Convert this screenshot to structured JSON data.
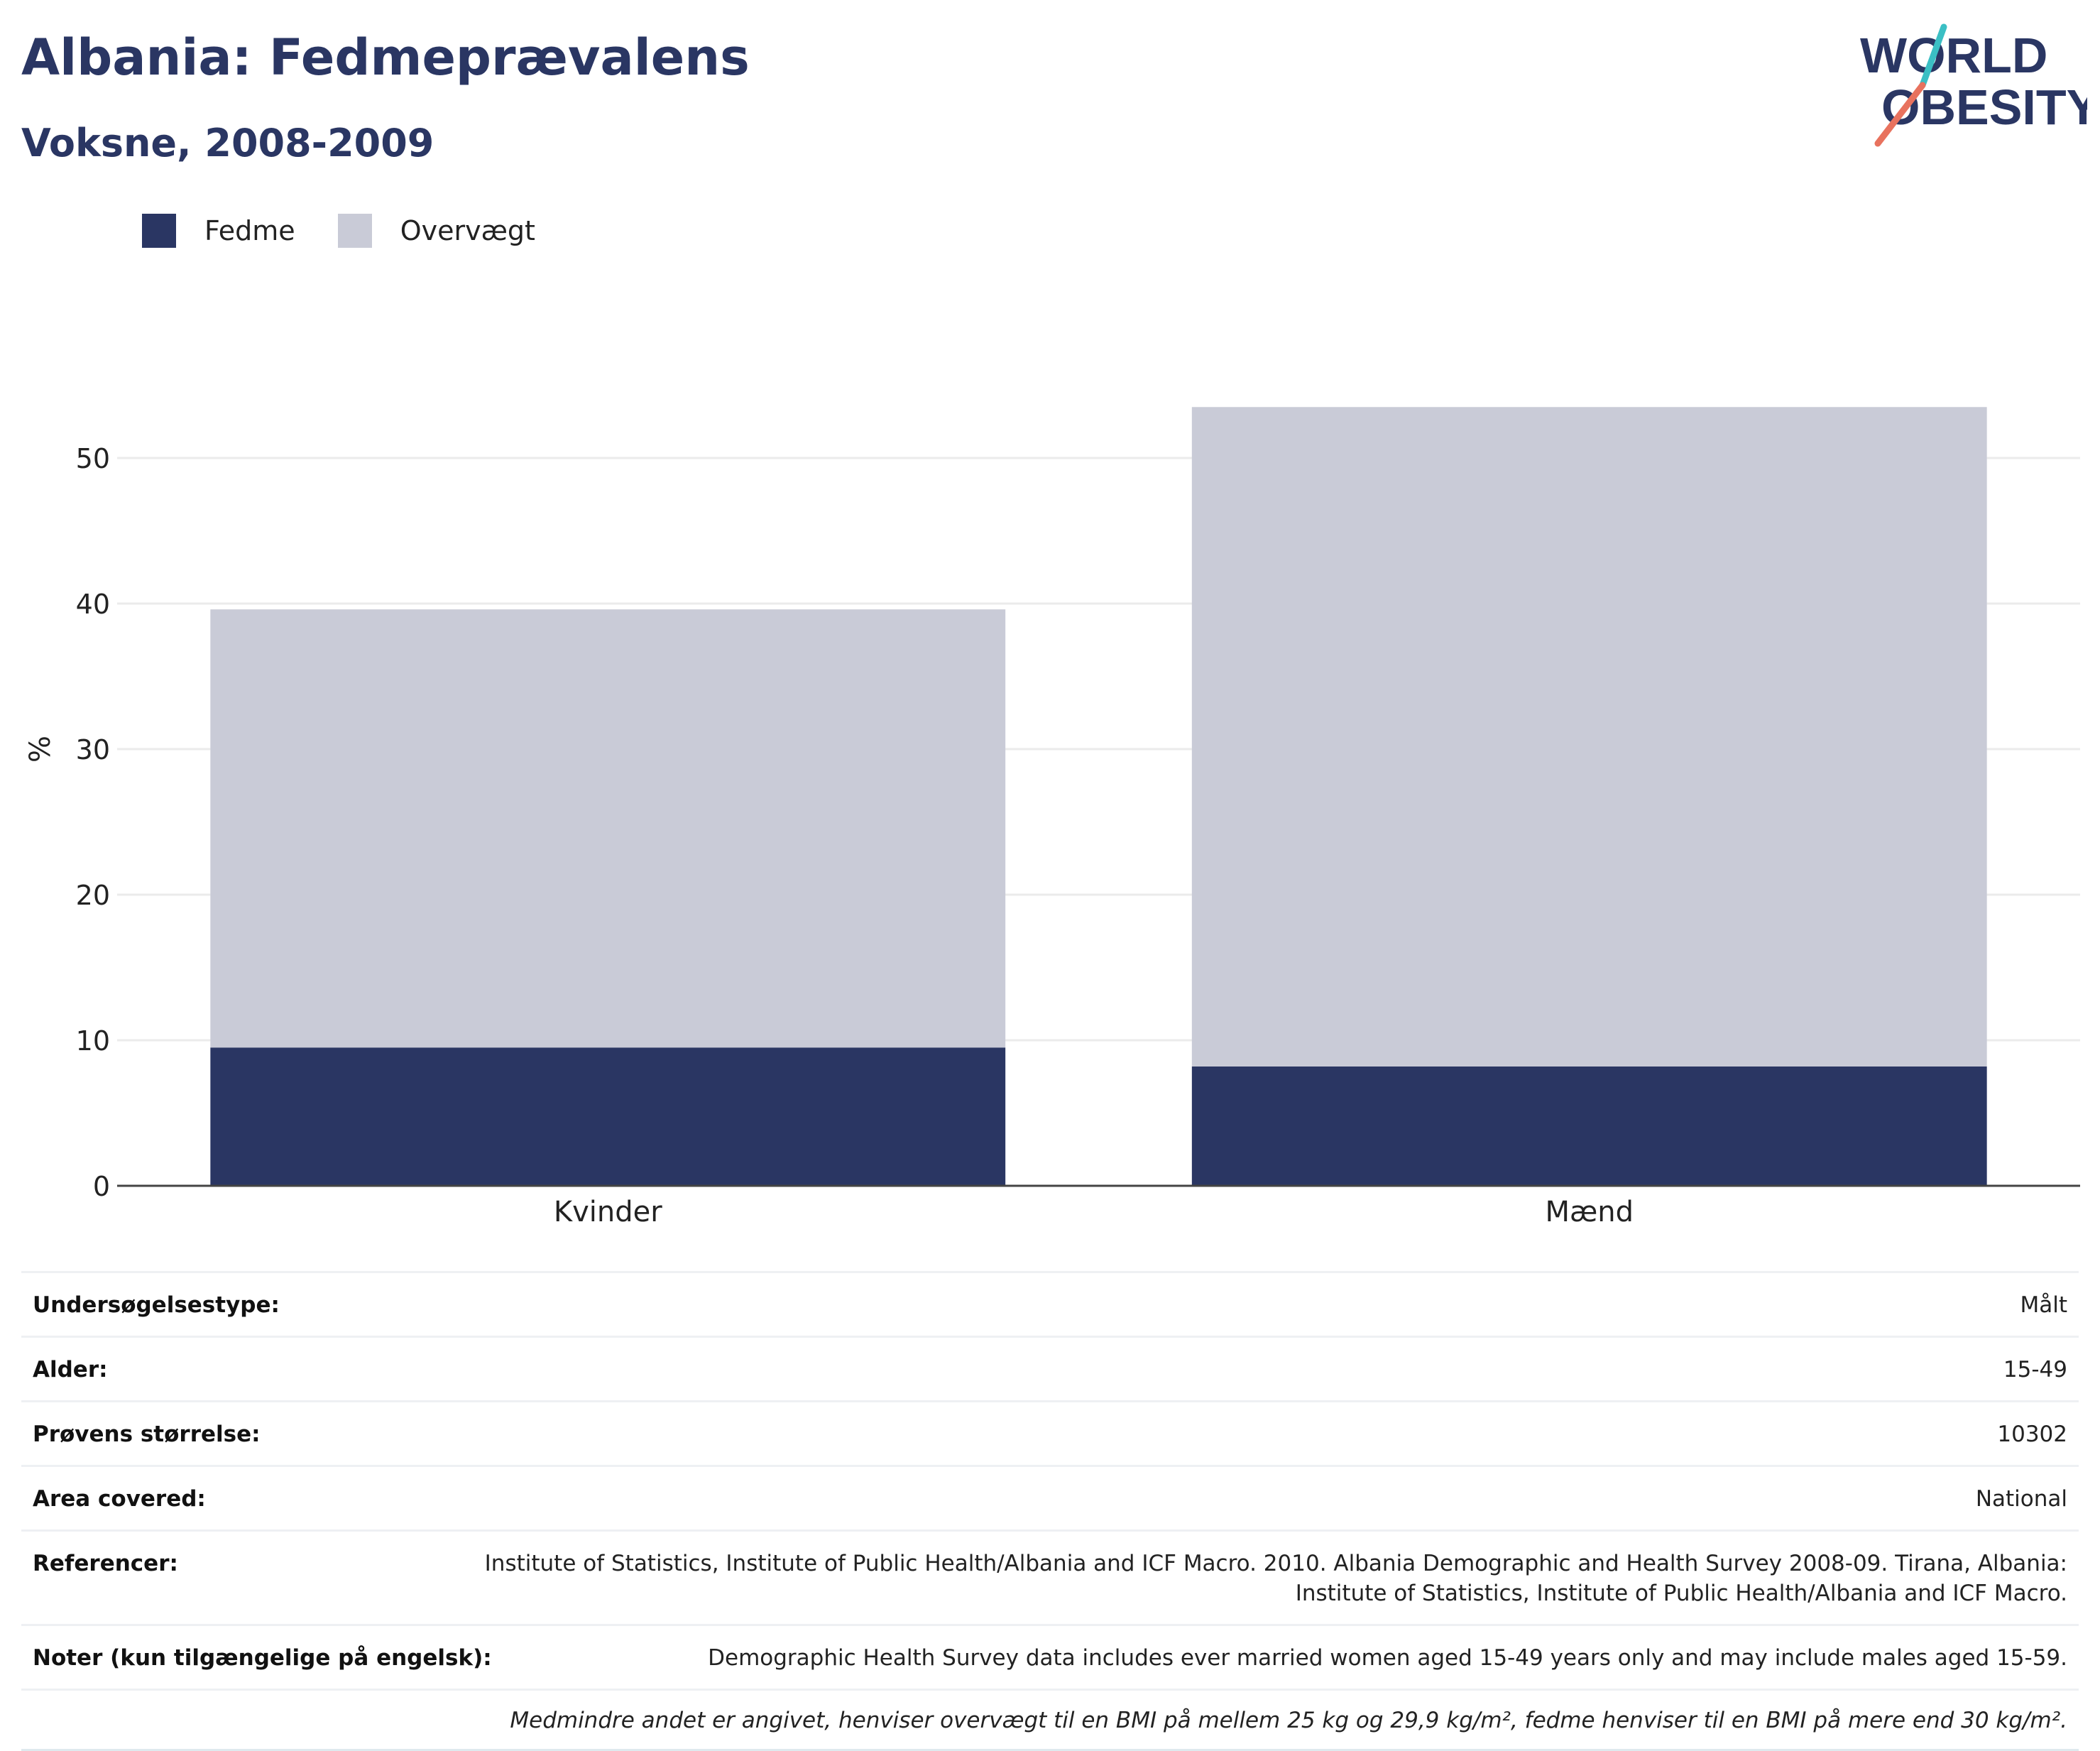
{
  "header": {
    "title": "Albania: Fedmeprævalens",
    "subtitle": "Voksne, 2008-2009",
    "logo_text": [
      "WORLD",
      "OBESITY"
    ]
  },
  "legend": [
    {
      "label": "Fedme",
      "color": "#2a3663"
    },
    {
      "label": "Overvægt",
      "color": "#c9cbd7"
    }
  ],
  "chart_data": {
    "type": "bar",
    "stacked": true,
    "categories": [
      "Kvinder",
      "Mænd"
    ],
    "series": [
      {
        "name": "Fedme",
        "values": [
          9.5,
          8.2
        ],
        "color": "#2a3663"
      },
      {
        "name": "Overvægt",
        "values": [
          30.1,
          45.3
        ],
        "color": "#c9cbd7"
      }
    ],
    "xlabel": "",
    "ylabel": "%",
    "ylim": [
      0,
      60
    ],
    "yticks": [
      0,
      10,
      20,
      30,
      40,
      50
    ],
    "grid": true,
    "legend_position": "top-left"
  },
  "info": {
    "rows": [
      {
        "label": "Undersøgelsestype:",
        "value": "Målt"
      },
      {
        "label": "Alder:",
        "value": "15-49"
      },
      {
        "label": "Prøvens størrelse:",
        "value": "10302"
      },
      {
        "label": "Area covered:",
        "value": "National"
      },
      {
        "label": "Referencer:",
        "value": "Institute of Statistics, Institute of Public Health/Albania and ICF Macro. 2010. Albania Demographic and Health Survey 2008-09. Tirana, Albania: Institute of Statistics, Institute of Public Health/Albania and ICF Macro."
      },
      {
        "label": "Noter (kun tilgængelige på engelsk):",
        "value": "Demographic Health Survey data includes ever married women aged 15-49 years only and may include males aged 15-59."
      }
    ],
    "footnote": "Medmindre andet er angivet, henviser overvægt til en BMI på mellem 25 kg og 29,9 kg/m², fedme henviser til en BMI på mere end 30 kg/m²."
  }
}
